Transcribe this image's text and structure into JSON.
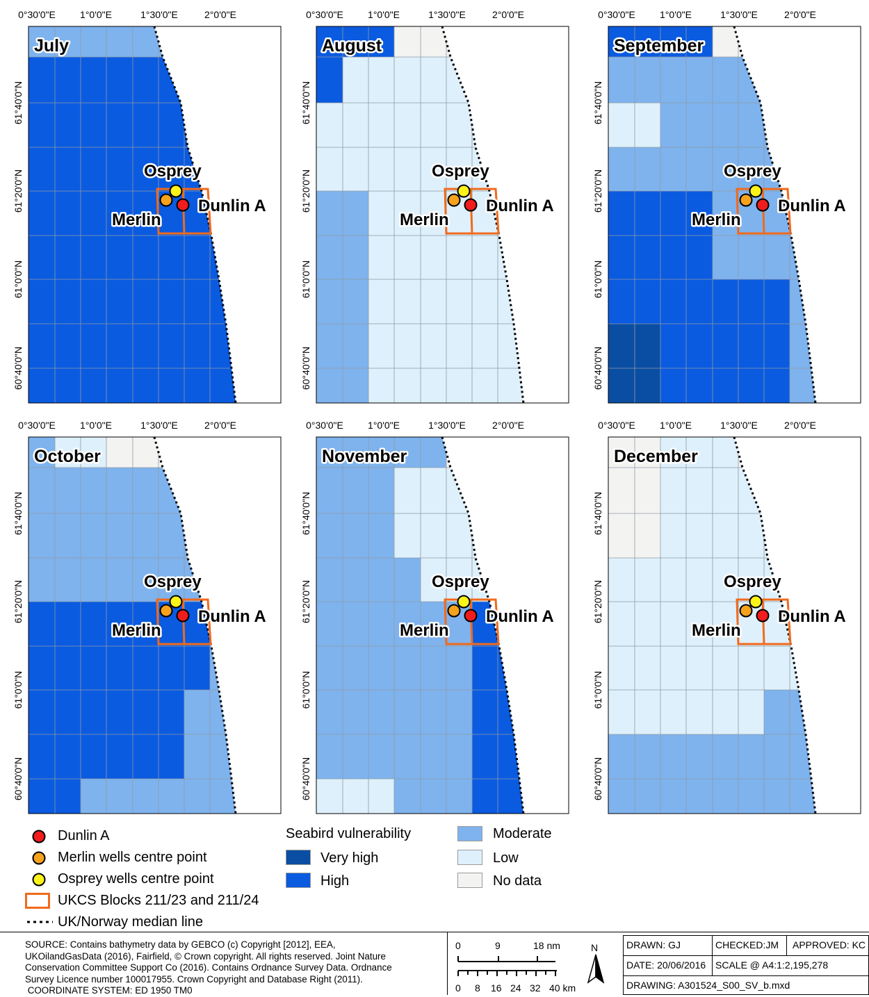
{
  "maps": [
    {
      "month": "July",
      "grid": [
        "MMMMMMMM",
        "HHHHHHHH",
        "HHHHHHHH",
        "HHHHHHMM",
        "HHHHHHHH",
        "HHHHHHHH",
        "HHHHHHHH",
        "HHHHHHHH",
        "HHHHHHHH",
        "HHHHHHHH"
      ]
    },
    {
      "month": "August",
      "grid": [
        "HHHNNNNN",
        "HLLLLLLL",
        "LLLLLLLL",
        "LLLLLLLL",
        "MLLLLLLL",
        "MLLLLLLL",
        "MLLLLLLL",
        "MLLLLLLL",
        "MLLLLLLL",
        "MLLLLLLL"
      ]
    },
    {
      "month": "September",
      "grid": [
        "HHHHNNNN",
        "MMMMMMMM",
        "LLMMMMMM",
        "MMMMMMMM",
        "HHHMMMMM",
        "HHHMMMMM",
        "HHHHHHMM",
        "VHHHHHMM",
        "VHHHHHMM",
        "VHHHHHMM"
      ]
    },
    {
      "month": "October",
      "grid": [
        "MLLNNNNN",
        "MMMMMMMM",
        "MMMMMMMM",
        "MMMMMMMM",
        "HHHHHHMM",
        "HHHHHHMM",
        "HHHHHMMM",
        "HHHHHMMM",
        "HMMMMMMM",
        "HMMMMMMM"
      ]
    },
    {
      "month": "November",
      "grid": [
        "MMMMMNNN",
        "MMMLLLLL",
        "MMMLLLLL",
        "MMMLLLLL",
        "MMMMMHHH",
        "MMMMMHHH",
        "MMMMMHHH",
        "MMMMMHHH",
        "LLMMMHHH",
        "LLMMMHHH"
      ]
    },
    {
      "month": "December",
      "grid": [
        "NNLLLNNN",
        "NNLLLLLL",
        "NNLLLLLL",
        "LLLLLLLL",
        "LLLLLLLL",
        "LLLLLLLL",
        "LLLLLMMM",
        "MMMMMMMM",
        "MMMMMMMM",
        "MMMMMMMM"
      ]
    }
  ],
  "axis": {
    "lon_ticks": [
      "0°30'0\"E",
      "1°0'0\"E",
      "1°30'0\"E",
      "2°0'0\"E"
    ],
    "lat_ticks": [
      "61°40'0\"N",
      "61°20'0\"N",
      "61°0'0\"N",
      "60°40'0\"N"
    ]
  },
  "points": {
    "osprey": "Osprey",
    "merlin": "Merlin",
    "dunlin": "Dunlin A"
  },
  "colors": {
    "very_high": "#0a4ea3",
    "high": "#0a5be0",
    "moderate": "#7fb3ee",
    "low": "#def0fb",
    "no_data": "#f3f3f2",
    "blocks": "#f06a1c",
    "dunlin": "#f11c1c",
    "merlin": "#f6a21c",
    "osprey": "#fcf419"
  },
  "legend": {
    "dunlin": "Dunlin A",
    "merlin": "Merlin wells centre point",
    "osprey": "Osprey wells centre point",
    "blocks": "UKCS Blocks 211/23 and 211/24",
    "median": "UK/Norway median line",
    "vuln_title": "Seabird vulnerability",
    "very_high": "Very high",
    "high": "High",
    "moderate": "Moderate",
    "low": "Low",
    "no_data": "No data"
  },
  "footer": {
    "source": [
      "SOURCE: Contains bathymetry data by GEBCO (c) Copyright [2012], EEA,",
      "UKOilandGasData (2016), Fairfield, © Crown copyright. All rights reserved. Joint Nature",
      "Conservation Committee Support Co (2016). Contains Ordnance Survey Data. Ordnance",
      "Survey Licence number 100017955. Crown Copyright and Database Right (2011).",
      " COORDINATE SYSTEM: ED 1950 TM0"
    ],
    "scale_nm": [
      "0",
      "9",
      "18 nm"
    ],
    "scale_km": [
      "0",
      "8",
      "16",
      "24",
      "32",
      "40 km"
    ],
    "north": "N",
    "drawn": "DRAWN: GJ",
    "checked": "CHECKED:JM",
    "approved": "APPROVED: KC",
    "date": "DATE: 20/06/2016",
    "scale": "SCALE @ A4:1:2,195,278",
    "drawing": "DRAWING: A301524_S00_SV_b.mxd"
  }
}
